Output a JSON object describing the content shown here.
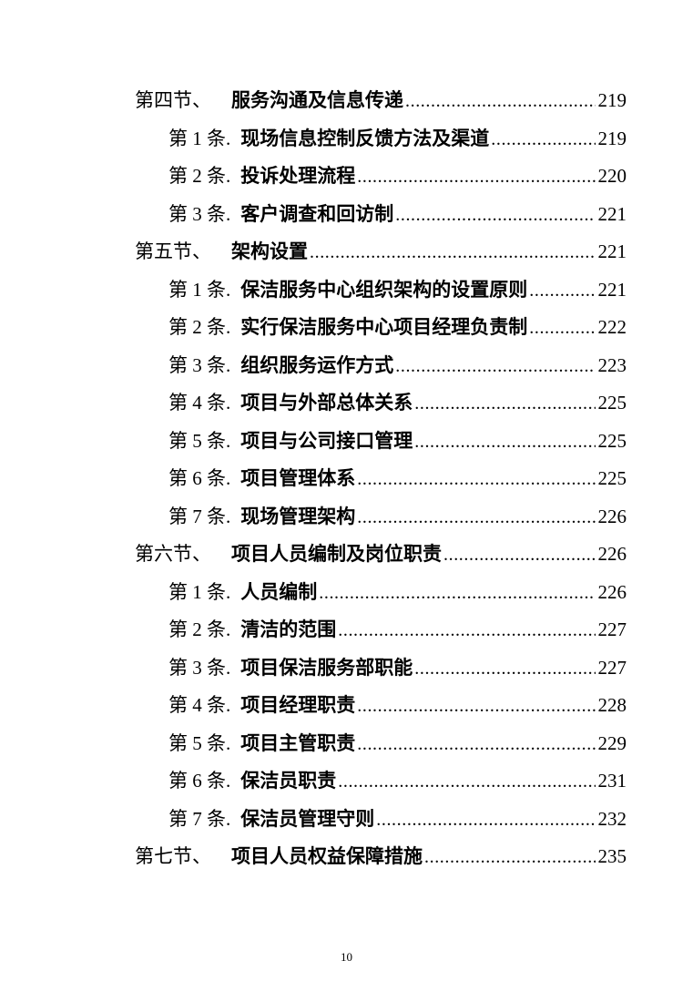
{
  "toc": {
    "entries": [
      {
        "level": 1,
        "label": "第四节、",
        "title": "服务沟通及信息传递",
        "page": "219"
      },
      {
        "level": 2,
        "label": "第 1 条.",
        "title": "现场信息控制反馈方法及渠道",
        "page": "219"
      },
      {
        "level": 2,
        "label": "第 2 条.",
        "title": "投诉处理流程",
        "page": "220"
      },
      {
        "level": 2,
        "label": "第 3 条.",
        "title": "客户调查和回访制",
        "page": "221"
      },
      {
        "level": 1,
        "label": "第五节、",
        "title": "架构设置",
        "page": "221"
      },
      {
        "level": 2,
        "label": "第 1 条.",
        "title": "保洁服务中心组织架构的设置原则",
        "page": "221"
      },
      {
        "level": 2,
        "label": "第 2 条.",
        "title": "实行保洁服务中心项目经理负责制",
        "page": "222"
      },
      {
        "level": 2,
        "label": "第 3 条.",
        "title": "组织服务运作方式",
        "page": "223"
      },
      {
        "level": 2,
        "label": "第 4 条.",
        "title": "项目与外部总体关系",
        "page": "225"
      },
      {
        "level": 2,
        "label": "第 5 条.",
        "title": "项目与公司接口管理",
        "page": "225"
      },
      {
        "level": 2,
        "label": "第 6 条.",
        "title": "项目管理体系",
        "page": "225"
      },
      {
        "level": 2,
        "label": "第 7 条.",
        "title": "现场管理架构",
        "page": "226"
      },
      {
        "level": 1,
        "label": "第六节、",
        "title": "项目人员编制及岗位职责",
        "page": "226"
      },
      {
        "level": 2,
        "label": "第 1 条.",
        "title": "人员编制",
        "page": "226"
      },
      {
        "level": 2,
        "label": "第 2 条.",
        "title": "清洁的范围",
        "page": "227"
      },
      {
        "level": 2,
        "label": "第 3 条.",
        "title": "项目保洁服务部职能",
        "page": "227"
      },
      {
        "level": 2,
        "label": "第 4 条.",
        "title": "项目经理职责",
        "page": "228"
      },
      {
        "level": 2,
        "label": "第 5 条.",
        "title": "项目主管职责",
        "page": "229"
      },
      {
        "level": 2,
        "label": "第 6 条.",
        "title": "保洁员职责",
        "page": "231"
      },
      {
        "level": 2,
        "label": "第 7 条.",
        "title": "保洁员管理守则",
        "page": "232"
      },
      {
        "level": 1,
        "label": "第七节、",
        "title": "项目人员权益保障措施",
        "page": "235"
      }
    ]
  },
  "footer": {
    "page_number": "10"
  },
  "colors": {
    "text": "#000000",
    "background": "#ffffff"
  }
}
